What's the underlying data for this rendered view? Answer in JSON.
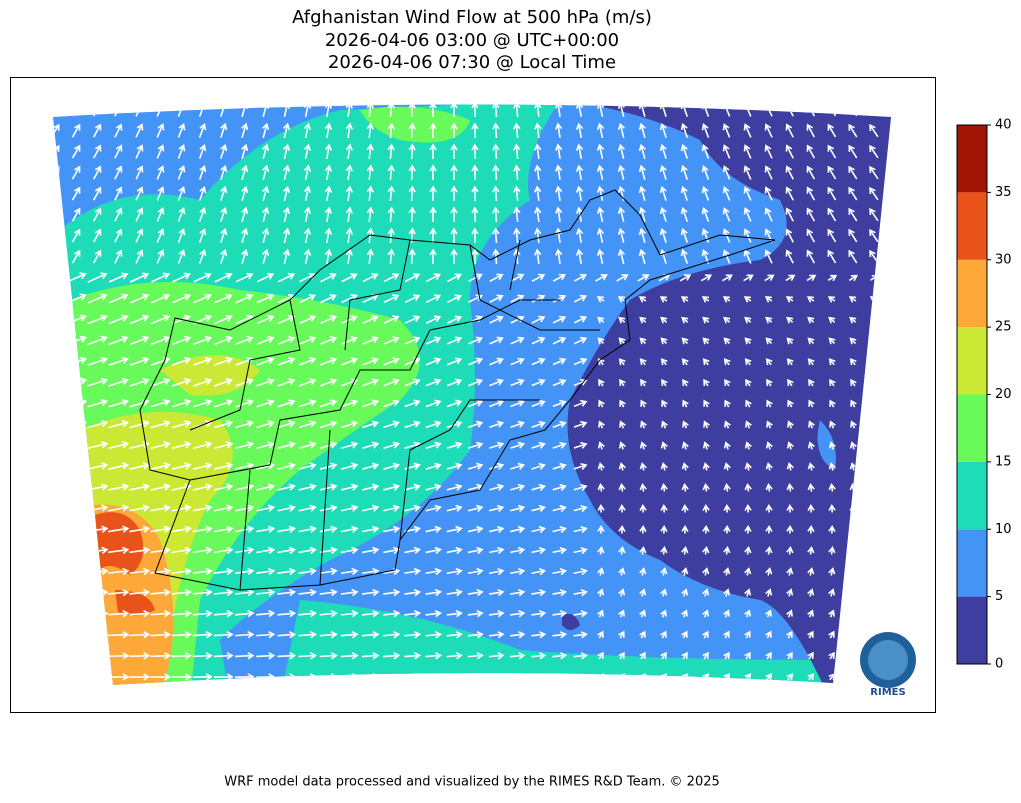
{
  "chart_data": {
    "type": "map",
    "title": [
      "Afghanistan Wind Flow at 500 hPa (m/s)",
      "2026-04-06 03:00 @ UTC+00:00",
      "2026-04-06 07:30 @ Local Time"
    ],
    "colorbar": {
      "lim": [
        0,
        40
      ],
      "ticks": [
        0,
        5,
        10,
        15,
        20,
        25,
        30,
        35,
        40
      ],
      "colors": [
        "#3d3e9f",
        "#4494f7",
        "#1fdcb8",
        "#68f95b",
        "#cbe834",
        "#fda838",
        "#e9531a",
        "#a01504"
      ]
    },
    "logo": "RIMES",
    "footer": "WRF model data processed and visualized by the RIMES R&D Team. © 2025"
  }
}
